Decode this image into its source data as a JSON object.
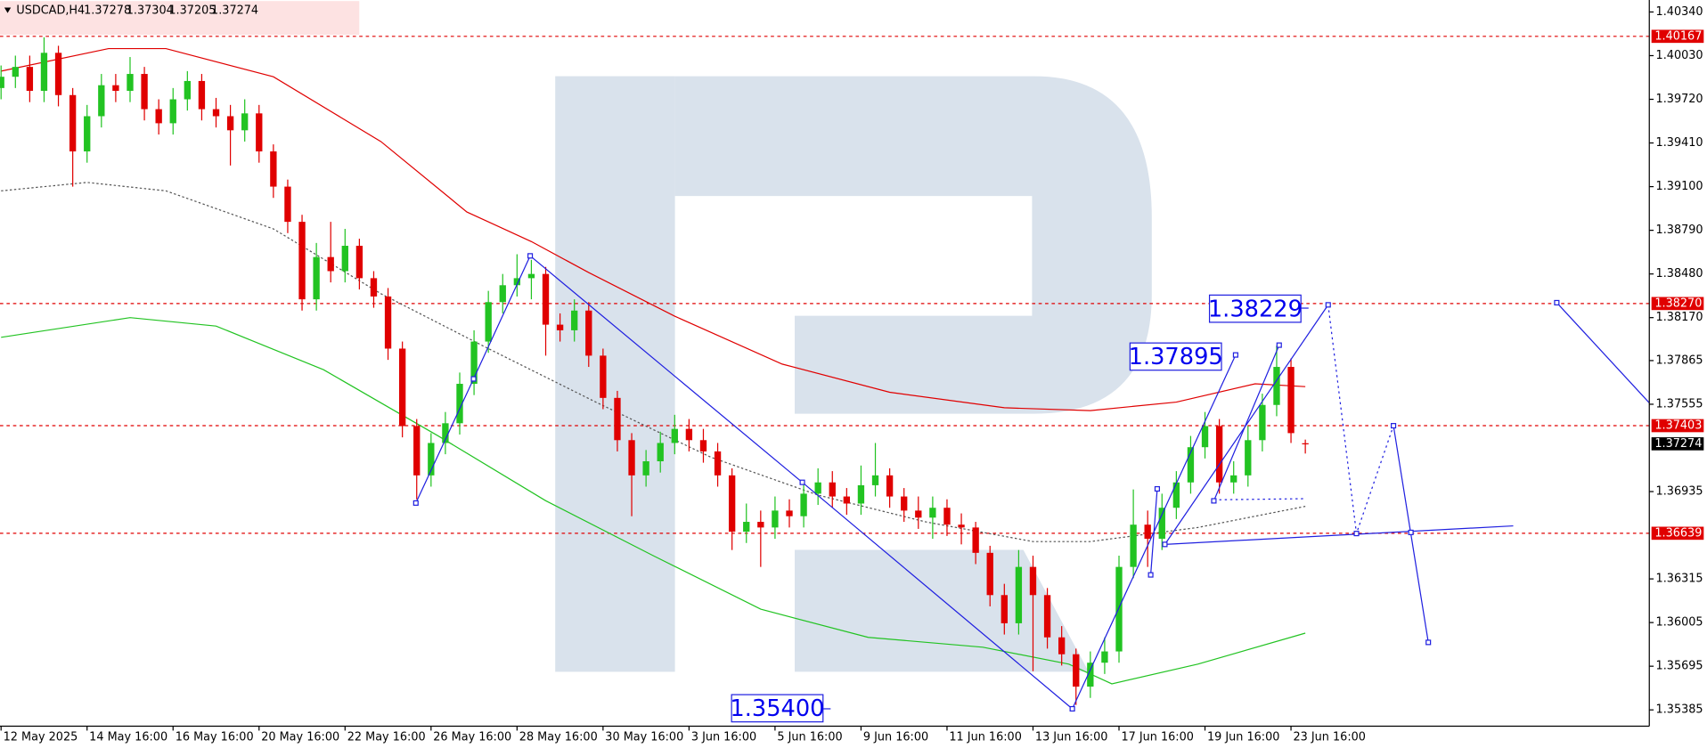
{
  "chart_data": {
    "type": "candlestick",
    "title": "USDCAD,H4",
    "ohlc": [
      1.37278,
      1.37304,
      1.37205,
      1.37274
    ],
    "up_color": "#22c322",
    "down_color": "#e00000",
    "x": [
      0,
      2,
      4,
      6,
      8,
      10,
      12,
      14,
      16,
      18,
      20,
      22,
      24,
      26,
      28,
      30,
      32,
      34,
      36,
      38,
      40,
      42,
      44,
      46,
      48,
      50,
      52,
      54,
      56,
      58,
      60,
      62,
      64,
      66,
      68,
      70,
      72,
      74,
      76,
      78,
      80,
      82,
      84,
      86,
      88,
      90,
      92,
      94,
      96,
      98,
      100,
      102,
      104,
      106,
      108,
      110,
      112,
      114,
      116,
      118,
      120,
      122,
      124,
      126,
      128,
      130,
      132,
      134,
      136,
      138,
      140,
      142,
      144,
      146,
      148,
      150,
      152,
      154,
      156,
      158,
      160,
      162,
      164,
      166,
      168,
      170,
      172,
      174,
      176,
      178,
      180,
      182
    ],
    "open": [
      1.398,
      1.3988,
      1.3995,
      1.3978,
      1.4005,
      1.3975,
      1.3935,
      1.396,
      1.3982,
      1.3978,
      1.399,
      1.3965,
      1.3955,
      1.3972,
      1.3985,
      1.3965,
      1.396,
      1.395,
      1.3962,
      1.3935,
      1.391,
      1.3885,
      1.383,
      1.386,
      1.385,
      1.3868,
      1.3845,
      1.3832,
      1.3795,
      1.374,
      1.3705,
      1.3728,
      1.3742,
      1.377,
      1.38,
      1.3828,
      1.384,
      1.3845,
      1.3848,
      1.3812,
      1.3808,
      1.3822,
      1.379,
      1.376,
      1.373,
      1.3705,
      1.3715,
      1.3728,
      1.3738,
      1.373,
      1.3722,
      1.3705,
      1.3665,
      1.3672,
      1.3668,
      1.368,
      1.3676,
      1.3692,
      1.37,
      1.369,
      1.3685,
      1.3698,
      1.3705,
      1.369,
      1.368,
      1.3675,
      1.3682,
      1.367,
      1.3668,
      1.365,
      1.362,
      1.36,
      1.364,
      1.362,
      1.359,
      1.3578,
      1.3555,
      1.3572,
      1.358,
      1.364,
      1.367,
      1.366,
      1.3682,
      1.37,
      1.3725,
      1.374,
      1.37,
      1.3705,
      1.373,
      1.3755,
      1.3782,
      1.37278
    ],
    "high": [
      1.3996,
      1.4003,
      1.4003,
      1.4016,
      1.401,
      1.398,
      1.3968,
      1.399,
      1.399,
      1.4002,
      1.3995,
      1.3972,
      1.398,
      1.3992,
      1.399,
      1.3973,
      1.3968,
      1.3972,
      1.3968,
      1.394,
      1.3915,
      1.389,
      1.387,
      1.3885,
      1.388,
      1.3873,
      1.385,
      1.3838,
      1.38,
      1.3745,
      1.3735,
      1.375,
      1.3778,
      1.3808,
      1.3836,
      1.3848,
      1.3862,
      1.3858,
      1.3853,
      1.382,
      1.383,
      1.3828,
      1.3795,
      1.3765,
      1.3735,
      1.3723,
      1.3736,
      1.3748,
      1.3745,
      1.3738,
      1.3728,
      1.371,
      1.3685,
      1.368,
      1.369,
      1.3688,
      1.37,
      1.371,
      1.3708,
      1.3696,
      1.3712,
      1.3728,
      1.371,
      1.3696,
      1.369,
      1.369,
      1.3688,
      1.3678,
      1.3672,
      1.3655,
      1.3628,
      1.3652,
      1.3648,
      1.3625,
      1.3598,
      1.3582,
      1.358,
      1.359,
      1.3648,
      1.3695,
      1.368,
      1.3692,
      1.3708,
      1.3733,
      1.375,
      1.3745,
      1.3715,
      1.374,
      1.3763,
      1.3797,
      1.3788,
      1.37304
    ],
    "low": [
      1.3972,
      1.398,
      1.397,
      1.397,
      1.3967,
      1.391,
      1.3927,
      1.3952,
      1.397,
      1.397,
      1.3957,
      1.3947,
      1.3947,
      1.3964,
      1.3957,
      1.3952,
      1.3925,
      1.3942,
      1.3927,
      1.3902,
      1.3877,
      1.3822,
      1.3822,
      1.3842,
      1.3842,
      1.3837,
      1.3824,
      1.3787,
      1.3732,
      1.3688,
      1.3697,
      1.372,
      1.3734,
      1.3762,
      1.3792,
      1.382,
      1.3832,
      1.383,
      1.379,
      1.38,
      1.38,
      1.3782,
      1.3752,
      1.3722,
      1.3676,
      1.3697,
      1.3707,
      1.372,
      1.3722,
      1.3714,
      1.3697,
      1.3652,
      1.3657,
      1.364,
      1.366,
      1.3668,
      1.3668,
      1.3684,
      1.3682,
      1.3677,
      1.3677,
      1.369,
      1.3682,
      1.3672,
      1.3667,
      1.366,
      1.3662,
      1.3656,
      1.3642,
      1.3612,
      1.3592,
      1.3592,
      1.3566,
      1.3582,
      1.357,
      1.3542,
      1.3547,
      1.3564,
      1.3572,
      1.3632,
      1.364,
      1.3652,
      1.3674,
      1.3692,
      1.3717,
      1.3692,
      1.3692,
      1.3697,
      1.3722,
      1.3747,
      1.3728,
      1.37205
    ],
    "close": [
      1.3988,
      1.3995,
      1.3978,
      1.4005,
      1.3975,
      1.3935,
      1.396,
      1.3982,
      1.3978,
      1.399,
      1.3965,
      1.3955,
      1.3972,
      1.3985,
      1.3965,
      1.396,
      1.395,
      1.3962,
      1.3935,
      1.391,
      1.3885,
      1.383,
      1.386,
      1.385,
      1.3868,
      1.3845,
      1.3832,
      1.3795,
      1.374,
      1.3705,
      1.3728,
      1.3742,
      1.377,
      1.38,
      1.3828,
      1.384,
      1.3845,
      1.3848,
      1.3812,
      1.3808,
      1.3822,
      1.379,
      1.376,
      1.373,
      1.3705,
      1.3715,
      1.3728,
      1.3738,
      1.373,
      1.3722,
      1.3705,
      1.3665,
      1.3672,
      1.3668,
      1.368,
      1.3676,
      1.3692,
      1.37,
      1.369,
      1.3685,
      1.3698,
      1.3705,
      1.369,
      1.368,
      1.3675,
      1.3682,
      1.367,
      1.3668,
      1.365,
      1.362,
      1.36,
      1.364,
      1.362,
      1.359,
      1.3578,
      1.3555,
      1.3572,
      1.358,
      1.364,
      1.367,
      1.366,
      1.3682,
      1.37,
      1.3725,
      1.374,
      1.37,
      1.3705,
      1.373,
      1.3755,
      1.3782,
      1.3735,
      1.37274
    ],
    "moving_averages": [
      {
        "color": "#e00000",
        "dashed": false,
        "x": [
          0,
          15,
          23,
          38,
          53,
          65,
          74,
          82,
          94,
          109,
          124,
          140,
          152,
          164,
          175,
          182
        ],
        "values": [
          1.3992,
          1.4008,
          1.4008,
          1.3988,
          1.3942,
          1.3892,
          1.3871,
          1.3849,
          1.3818,
          1.3784,
          1.3764,
          1.3753,
          1.3751,
          1.3757,
          1.377,
          1.3768
        ]
      },
      {
        "color": "#555555",
        "dashed": true,
        "x": [
          0,
          12,
          23,
          38,
          53,
          68,
          83,
          99,
          114,
          129,
          144,
          152,
          167,
          182
        ],
        "values": [
          1.3907,
          1.3913,
          1.3907,
          1.388,
          1.3834,
          1.3795,
          1.3757,
          1.3718,
          1.3691,
          1.3672,
          1.3658,
          1.3658,
          1.3668,
          1.3683
        ]
      },
      {
        "color": "#22c322",
        "dashed": false,
        "x": [
          0,
          18,
          30,
          45,
          61,
          76,
          91,
          106,
          121,
          137,
          149,
          155,
          167,
          182
        ],
        "values": [
          1.3803,
          1.3817,
          1.3811,
          1.378,
          1.3733,
          1.3687,
          1.3648,
          1.361,
          1.359,
          1.3583,
          1.3571,
          1.3557,
          1.3571,
          1.3593
        ]
      }
    ],
    "xlim": [
      -0.15,
      230
    ],
    "ylim": [
      1.35269,
      1.40425
    ],
    "xticks": [
      {
        "value": 0,
        "label": "12 May 2025"
      },
      {
        "value": 12,
        "label": "14 May 16:00"
      },
      {
        "value": 24,
        "label": "16 May 16:00"
      },
      {
        "value": 36,
        "label": "20 May 16:00"
      },
      {
        "value": 48,
        "label": "22 May 16:00"
      },
      {
        "value": 60,
        "label": "26 May 16:00"
      },
      {
        "value": 72,
        "label": "28 May 16:00"
      },
      {
        "value": 84,
        "label": "30 May 16:00"
      },
      {
        "value": 96,
        "label": "3 Jun 16:00"
      },
      {
        "value": 108,
        "label": "5 Jun 16:00"
      },
      {
        "value": 120,
        "label": "9 Jun 16:00"
      },
      {
        "value": 132,
        "label": "11 Jun 16:00"
      },
      {
        "value": 144,
        "label": "13 Jun 16:00"
      },
      {
        "value": 156,
        "label": "17 Jun 16:00"
      },
      {
        "value": 168,
        "label": "19 Jun 16:00"
      },
      {
        "value": 180,
        "label": "23 Jun 16:00"
      }
    ],
    "yticks": [
      {
        "value": 1.4034,
        "label": "1.40340"
      },
      {
        "value": 1.4003,
        "label": "1.40030"
      },
      {
        "value": 1.3972,
        "label": "1.39720"
      },
      {
        "value": 1.3941,
        "label": "1.39410"
      },
      {
        "value": 1.391,
        "label": "1.39100"
      },
      {
        "value": 1.3879,
        "label": "1.38790"
      },
      {
        "value": 1.3848,
        "label": "1.38480"
      },
      {
        "value": 1.3817,
        "label": "1.38170"
      },
      1.37865,
      1.37555,
      1.36935,
      1.36315,
      1.36005,
      1.35695,
      1.35385
    ],
    "levels": [
      1.40167,
      {
        "value": 1.3827,
        "label": "1.38270"
      },
      1.37403,
      1.36639
    ],
    "level_color": "#e00000",
    "last_price": 1.37274,
    "annotations": [
      "1.38229",
      "1.37895",
      "1.35400"
    ]
  }
}
